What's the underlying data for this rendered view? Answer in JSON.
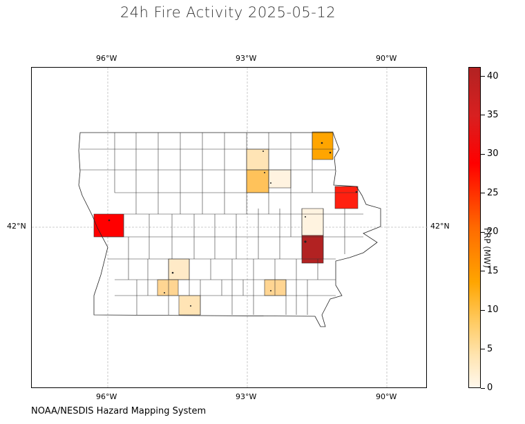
{
  "title": "24h Fire Activity 2025-05-12",
  "source": "NOAA/NESDIS Hazard Mapping System",
  "colorbar": {
    "label": "FRP (MW)",
    "ticks": [
      "0",
      "5",
      "10",
      "15",
      "20",
      "25",
      "30",
      "35",
      "40"
    ],
    "max": 41.2
  },
  "axes": {
    "lon_labels": [
      "96°W",
      "93°W",
      "90°W"
    ],
    "lat_labels": [
      "42°N"
    ]
  },
  "map": {
    "region": "Iowa counties",
    "grid": true,
    "colors": {
      "none": "#ffffff",
      "c1": "#fff3e0",
      "c2": "#ffe4b5",
      "c3": "#ffd592",
      "c4": "#ffc25a",
      "c5": "#ffa500",
      "c6": "#ff2010",
      "c7": "#b22222"
    }
  },
  "chart_data": {
    "type": "heatmap",
    "title": "24h Fire Activity 2025-05-12",
    "colorbar_label": "FRP (MW)",
    "colorbar_range": [
      0,
      41.2
    ],
    "counties_with_fire": [
      {
        "frp": 14
      },
      {
        "frp": 4
      },
      {
        "frp": 6
      },
      {
        "frp": 2
      },
      {
        "frp": 28
      },
      {
        "frp": 27
      },
      {
        "frp": 1
      },
      {
        "frp": 38
      },
      {
        "frp": 2
      },
      {
        "frp": 5
      },
      {
        "frp": 5
      },
      {
        "frp": 4
      }
    ]
  }
}
